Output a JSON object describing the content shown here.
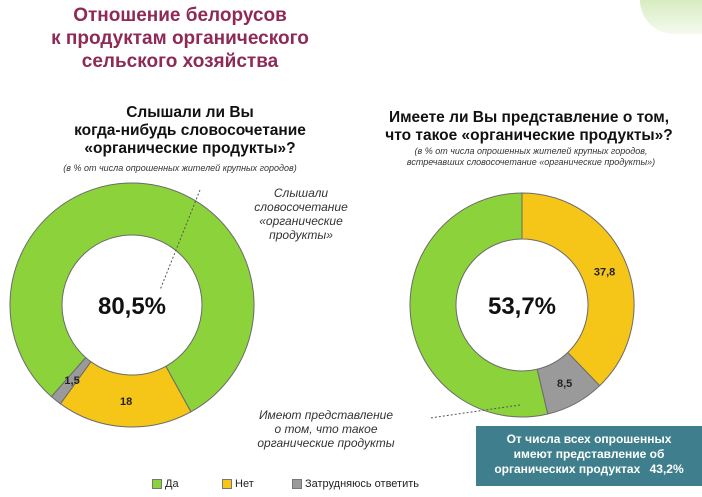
{
  "page": {
    "title": "Отношение белорусов\nк продуктам органического\nсельского хозяйства"
  },
  "colors": {
    "yes": "#8cd23a",
    "no": "#f5c518",
    "unsure": "#9a9a9a",
    "ring_gap": "#ffffff"
  },
  "chart_data": [
    {
      "type": "pie",
      "title": "Слышали ли Вы\nкогда-нибудь словосочетание\n«органические продукты»?",
      "subtitle": "(в % от числа опрошенных жителей крупных городов)",
      "center_label": "80,5%",
      "categories": [
        "Да",
        "Нет",
        "Затрудняюсь ответить"
      ],
      "values": [
        80.5,
        18,
        1.5
      ],
      "data_labels": [
        "",
        "18",
        "1,5"
      ],
      "annotation": "Слышали\nсловосочетание\n«органические\nпродукты»"
    },
    {
      "type": "pie",
      "title": "Имеете ли Вы представление о том,\nчто такое «органические продукты»?",
      "subtitle": "(в % от числа опрошенных жителей крупных городов,\nвстречавших словосочетание «органические продукты»)",
      "center_label": "53,7%",
      "categories": [
        "Да",
        "Нет",
        "Затрудняюсь ответить"
      ],
      "values": [
        53.7,
        37.8,
        8.5
      ],
      "data_labels": [
        "",
        "37,8",
        "8,5"
      ],
      "annotation": "Имеют представление\nо том, что такое\nорганические продукты"
    }
  ],
  "summary": {
    "lines": "От числа всех опрошенных\nимеют представление об",
    "last_text": "органических продуктах",
    "value": "43,2%"
  },
  "legend": {
    "items": [
      {
        "label": "Да",
        "color_key": "yes"
      },
      {
        "label": "Нет",
        "color_key": "no"
      },
      {
        "label": "Затрудняюсь ответить",
        "color_key": "unsure"
      }
    ]
  }
}
